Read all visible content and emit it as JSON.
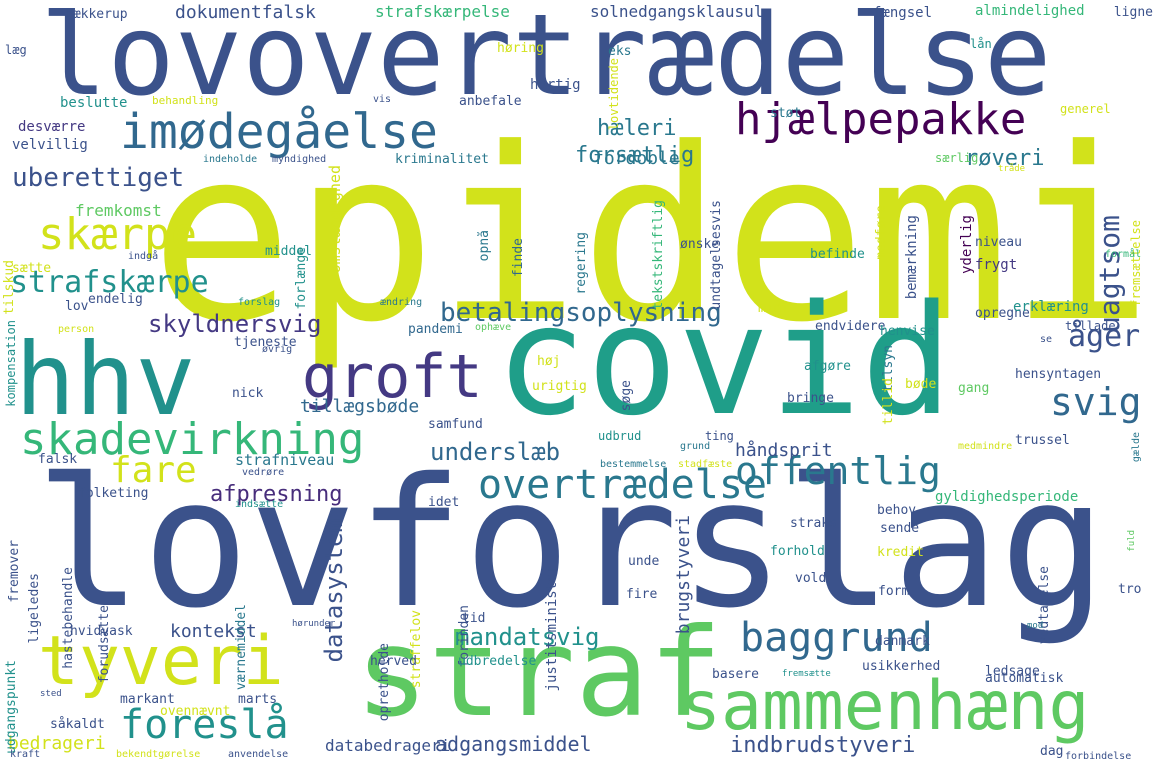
{
  "words": [
    {
      "text": "epidemi",
      "color": "#d2e21b"
    },
    {
      "text": "lovforslag",
      "color": "#3b528b"
    },
    {
      "text": "lovovertrædelse",
      "color": "#3b528b"
    },
    {
      "text": "covid",
      "color": "#1f9e89"
    },
    {
      "text": "straf",
      "color": "#5ec962"
    },
    {
      "text": "hhv",
      "color": "#21918c"
    },
    {
      "text": "sammenhæng",
      "color": "#5ec962"
    },
    {
      "text": "tyveri",
      "color": "#d2e21b"
    },
    {
      "text": "imødegåelse",
      "color": "#31688e"
    },
    {
      "text": "groft",
      "color": "#443983"
    },
    {
      "text": "hjælpepakke",
      "color": "#440154"
    },
    {
      "text": "skadevirkning",
      "color": "#35b779"
    },
    {
      "text": "overtrædelse",
      "color": "#2a788e"
    },
    {
      "text": "baggrund",
      "color": "#31688e"
    },
    {
      "text": "foreslå",
      "color": "#21918c"
    },
    {
      "text": "skærpe",
      "color": "#d2e21b"
    },
    {
      "text": "offentlig",
      "color": "#2a788e"
    },
    {
      "text": "fare",
      "color": "#d2e21b"
    },
    {
      "text": "svig",
      "color": "#31688e"
    },
    {
      "text": "betalingsoplysning",
      "color": "#31688e"
    },
    {
      "text": "strafskærpe",
      "color": "#21918c"
    },
    {
      "text": "uberettiget",
      "color": "#3b528b"
    },
    {
      "text": "skyldnersvig",
      "color": "#443983"
    },
    {
      "text": "uagtsom",
      "color": "#3b528b"
    },
    {
      "text": "åger",
      "color": "#3b528b"
    },
    {
      "text": "underslæb",
      "color": "#31688e"
    },
    {
      "text": "afpresning",
      "color": "#472d7b"
    },
    {
      "text": "mandatsvig",
      "color": "#21918c"
    },
    {
      "text": "datasystem",
      "color": "#3b528b"
    },
    {
      "text": "forsætlig",
      "color": "#2a788e"
    },
    {
      "text": "hæleri",
      "color": "#2a788e"
    },
    {
      "text": "røveri",
      "color": "#2a788e"
    },
    {
      "text": "håndsprit",
      "color": "#3b528b"
    },
    {
      "text": "adgangsmiddel",
      "color": "#3b528b"
    },
    {
      "text": "indbrudstyveri",
      "color": "#3b528b"
    },
    {
      "text": "dokumentfalsk",
      "color": "#3b528b"
    },
    {
      "text": "strafskærpelse",
      "color": "#35b779"
    },
    {
      "text": "solnedgangsklausul",
      "color": "#3b528b"
    },
    {
      "text": "brugstyveri",
      "color": "#3b528b"
    },
    {
      "text": "databedrageri",
      "color": "#3b528b"
    },
    {
      "text": "kontekst",
      "color": "#3b528b"
    },
    {
      "text": "fordoble",
      "color": "#2a788e"
    },
    {
      "text": "tillægsbøde",
      "color": "#31688e"
    },
    {
      "text": "fremkomst",
      "color": "#5ec962"
    },
    {
      "text": "strafniveau",
      "color": "#2a788e"
    },
    {
      "text": "bedrageri",
      "color": "#d2e21b"
    },
    {
      "text": "hækkerup",
      "color": "#3b528b"
    },
    {
      "text": "fængsel",
      "color": "#3b528b"
    },
    {
      "text": "almindelighed",
      "color": "#35b779"
    },
    {
      "text": "ligne",
      "color": "#3b528b"
    },
    {
      "text": "læg",
      "color": "#3b528b"
    },
    {
      "text": "høring",
      "color": "#d2e21b"
    },
    {
      "text": "eks",
      "color": "#2a788e"
    },
    {
      "text": "lån",
      "color": "#21918c"
    },
    {
      "text": "hurtig",
      "color": "#3b528b"
    },
    {
      "text": "beslutte",
      "color": "#21918c"
    },
    {
      "text": "behandling",
      "color": "#d2e21b"
    },
    {
      "text": "vis",
      "color": "#3b528b"
    },
    {
      "text": "anbefale",
      "color": "#3b528b"
    },
    {
      "text": "lovtidende",
      "color": "#d2e21b"
    },
    {
      "text": "støt",
      "color": "#2a788e"
    },
    {
      "text": "generel",
      "color": "#d2e21b"
    },
    {
      "text": "desværre",
      "color": "#443983"
    },
    {
      "text": "velvillig",
      "color": "#3b528b"
    },
    {
      "text": "kriminalitet",
      "color": "#2a788e"
    },
    {
      "text": "indeholde",
      "color": "#2a788e"
    },
    {
      "text": "myndighed",
      "color": "#3b528b"
    },
    {
      "text": "særlig",
      "color": "#5ec962"
    },
    {
      "text": "tråde",
      "color": "#d2e21b"
    },
    {
      "text": "tilskud",
      "color": "#d2e21b"
    },
    {
      "text": "omstændighed",
      "color": "#d2e21b"
    },
    {
      "text": "middel",
      "color": "#21918c"
    },
    {
      "text": "opnå",
      "color": "#2a788e"
    },
    {
      "text": "finde",
      "color": "#31688e"
    },
    {
      "text": "regering",
      "color": "#2a788e"
    },
    {
      "text": "tekstskriftlig",
      "color": "#35b779"
    },
    {
      "text": "undtagelsesvis",
      "color": "#3b528b"
    },
    {
      "text": "ønske",
      "color": "#3b528b"
    },
    {
      "text": "medføre",
      "color": "#d2e21b"
    },
    {
      "text": "bemærkning",
      "color": "#3b528b"
    },
    {
      "text": "niveau",
      "color": "#3b528b"
    },
    {
      "text": "frygt",
      "color": "#443983"
    },
    {
      "text": "yderlig",
      "color": "#440154"
    },
    {
      "text": "fremsættelse",
      "color": "#d2e21b"
    },
    {
      "text": "formål",
      "color": "#35b779"
    },
    {
      "text": "sætte",
      "color": "#d2e21b"
    },
    {
      "text": "indgå",
      "color": "#3b528b"
    },
    {
      "text": "forlænge",
      "color": "#21918c"
    },
    {
      "text": "befinde",
      "color": "#21918c"
    },
    {
      "text": "lov",
      "color": "#3b528b"
    },
    {
      "text": "endelig",
      "color": "#3b528b"
    },
    {
      "text": "forslag",
      "color": "#21918c"
    },
    {
      "text": "ændring",
      "color": "#2a788e"
    },
    {
      "text": "midt",
      "color": "#d2e21b"
    },
    {
      "text": "opregne",
      "color": "#3b528b"
    },
    {
      "text": "erklæring",
      "color": "#21918c"
    },
    {
      "text": "kompensation",
      "color": "#21918c"
    },
    {
      "text": "tjeneste",
      "color": "#3b528b"
    },
    {
      "text": "pandemi",
      "color": "#31688e"
    },
    {
      "text": "ophæve",
      "color": "#5ec962"
    },
    {
      "text": "endvidere",
      "color": "#3b528b"
    },
    {
      "text": "henvise",
      "color": "#21918c"
    },
    {
      "text": "tillade",
      "color": "#3b528b"
    },
    {
      "text": "person",
      "color": "#d2e21b"
    },
    {
      "text": "øvrig",
      "color": "#3b528b"
    },
    {
      "text": "tilsyn",
      "color": "#2a788e"
    },
    {
      "text": "se",
      "color": "#3b528b"
    },
    {
      "text": "høj",
      "color": "#d2e21b"
    },
    {
      "text": "afgøre",
      "color": "#21918c"
    },
    {
      "text": "tillid",
      "color": "#d2e21b"
    },
    {
      "text": "bøde",
      "color": "#d2e21b"
    },
    {
      "text": "hensyntagen",
      "color": "#3b528b"
    },
    {
      "text": "nick",
      "color": "#3b528b"
    },
    {
      "text": "urigtig",
      "color": "#d2e21b"
    },
    {
      "text": "søge",
      "color": "#3b528b"
    },
    {
      "text": "gang",
      "color": "#5ec962"
    },
    {
      "text": "bringe",
      "color": "#3b528b"
    },
    {
      "text": "samfund",
      "color": "#3b528b"
    },
    {
      "text": "ting",
      "color": "#3b528b"
    },
    {
      "text": "udbrud",
      "color": "#21918c"
    },
    {
      "text": "grund",
      "color": "#2a788e"
    },
    {
      "text": "medmindre",
      "color": "#d2e21b"
    },
    {
      "text": "trussel",
      "color": "#3b528b"
    },
    {
      "text": "gælde",
      "color": "#2a788e"
    },
    {
      "text": "falsk",
      "color": "#3b528b"
    },
    {
      "text": "vedrøre",
      "color": "#3b528b"
    },
    {
      "text": "bestemmelse",
      "color": "#2a788e"
    },
    {
      "text": "stadfæste",
      "color": "#d2e21b"
    },
    {
      "text": "fremover",
      "color": "#3b528b"
    },
    {
      "text": "folketing",
      "color": "#3b528b"
    },
    {
      "text": "indsætte",
      "color": "#21918c"
    },
    {
      "text": "idet",
      "color": "#3b528b"
    },
    {
      "text": "behov",
      "color": "#3b528b"
    },
    {
      "text": "gyldighedsperiode",
      "color": "#35b779"
    },
    {
      "text": "hastebehandle",
      "color": "#3b528b"
    },
    {
      "text": "ligeledes",
      "color": "#3b528b"
    },
    {
      "text": "forudsætte",
      "color": "#3b528b"
    },
    {
      "text": "værnemiddel",
      "color": "#2a788e"
    },
    {
      "text": "justitsminister",
      "color": "#3b528b"
    },
    {
      "text": "straks",
      "color": "#3b528b"
    },
    {
      "text": "sende",
      "color": "#3b528b"
    },
    {
      "text": "vedtagelse",
      "color": "#3b528b"
    },
    {
      "text": "fuld",
      "color": "#5ec962"
    },
    {
      "text": "unde",
      "color": "#3b528b"
    },
    {
      "text": "forhold",
      "color": "#21918c"
    },
    {
      "text": "kredit",
      "color": "#d2e21b"
    },
    {
      "text": "opretholde",
      "color": "#3b528b"
    },
    {
      "text": "straffelov",
      "color": "#d2e21b"
    },
    {
      "text": "forinden",
      "color": "#3b528b"
    },
    {
      "text": "vold",
      "color": "#3b528b"
    },
    {
      "text": "form",
      "color": "#3b528b"
    },
    {
      "text": "tro",
      "color": "#3b528b"
    },
    {
      "text": "mod",
      "color": "#2a788e"
    },
    {
      "text": "hørunder",
      "color": "#3b528b"
    },
    {
      "text": "tid",
      "color": "#3b528b"
    },
    {
      "text": "fire",
      "color": "#3b528b"
    },
    {
      "text": "udgangspunkt",
      "color": "#21918c"
    },
    {
      "text": "hvidvask",
      "color": "#3b528b"
    },
    {
      "text": "herved",
      "color": "#3b528b"
    },
    {
      "text": "udbredelse",
      "color": "#21918c"
    },
    {
      "text": "danmark",
      "color": "#3b528b"
    },
    {
      "text": "usikkerhed",
      "color": "#3b528b"
    },
    {
      "text": "basere",
      "color": "#3b528b"
    },
    {
      "text": "fremsætte",
      "color": "#21918c"
    },
    {
      "text": "ledsage",
      "color": "#3b528b"
    },
    {
      "text": "automatisk",
      "color": "#3b528b"
    },
    {
      "text": "markant",
      "color": "#3b528b"
    },
    {
      "text": "marts",
      "color": "#3b528b"
    },
    {
      "text": "sted",
      "color": "#3b528b"
    },
    {
      "text": "ovennævnt",
      "color": "#d2e21b"
    },
    {
      "text": "såkaldt",
      "color": "#3b528b"
    },
    {
      "text": "kraft",
      "color": "#3b528b"
    },
    {
      "text": "bekendtgørelse",
      "color": "#d2e21b"
    },
    {
      "text": "anvendelse",
      "color": "#3b528b"
    },
    {
      "text": "dag",
      "color": "#3b528b"
    },
    {
      "text": "forbindelse",
      "color": "#3b528b"
    }
  ]
}
